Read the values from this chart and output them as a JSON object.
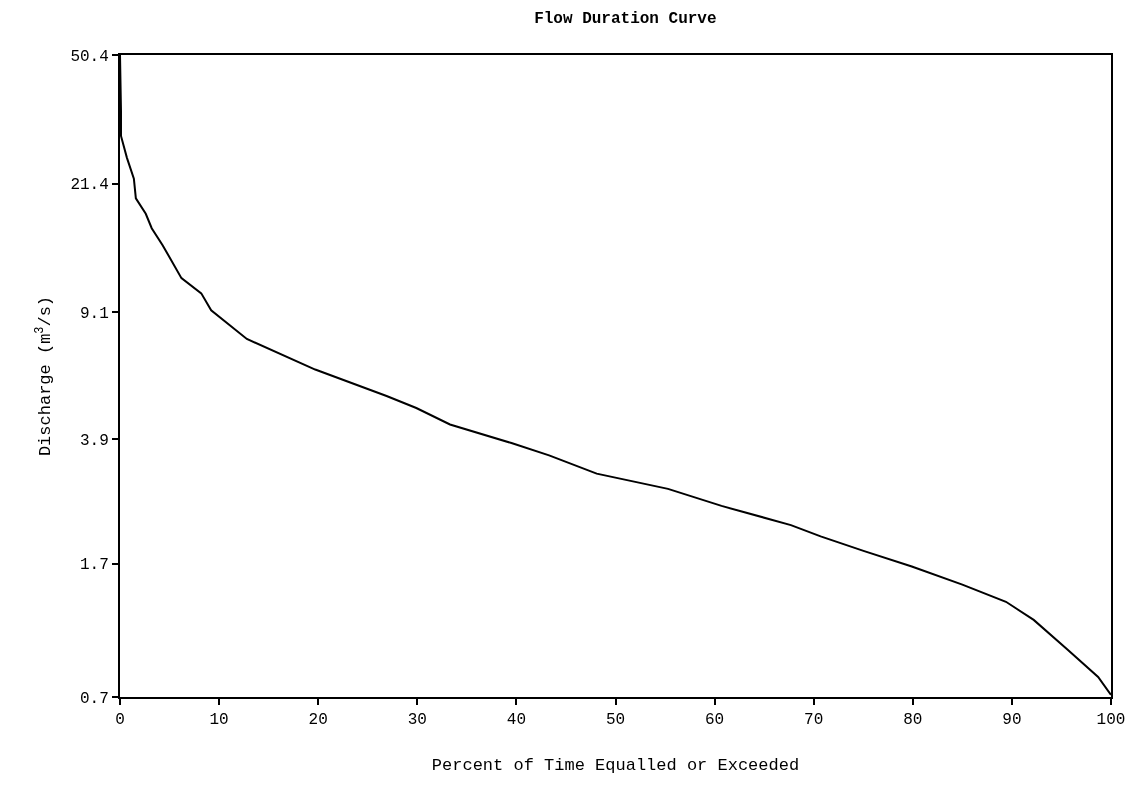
{
  "chart_data": {
    "type": "line",
    "title": "Flow Duration Curve",
    "xlabel": "Percent of Time Equalled or Exceeded",
    "ylabel": "Discharge (m$^{3}$/s)",
    "log": "y",
    "marker": "none",
    "line_style": "solid",
    "x": [
      0,
      0.1,
      0.1,
      0.7,
      1.4,
      1.6,
      2.6,
      3.2,
      4.3,
      6.2,
      8.2,
      9.2,
      12.8,
      19.7,
      26.9,
      29.9,
      33.3,
      39.5,
      43.3,
      48.1,
      55.3,
      60.7,
      67.7,
      70.7,
      75.1,
      79.9,
      85.0,
      89.4,
      92.2,
      95.6,
      98.7,
      100
    ],
    "series": [
      {
        "color": "#000000",
        "values": [
          50.4,
          34.7,
          29.4,
          25.4,
          22.1,
          19.4,
          17.5,
          15.9,
          14.2,
          11.4,
          10.3,
          9.2,
          7.6,
          6.2,
          5.2,
          4.8,
          4.3,
          3.8,
          3.5,
          3.1,
          2.8,
          2.5,
          2.2,
          2.04,
          1.85,
          1.67,
          1.48,
          1.32,
          1.17,
          0.96,
          0.8,
          0.71
        ]
      }
    ],
    "xlim": [
      0,
      100
    ],
    "xticks": [
      0,
      10,
      20,
      30,
      40,
      50,
      60,
      70,
      80,
      90,
      100
    ],
    "ylim": [
      0.7,
      50.4
    ],
    "yticks": [
      0.7,
      1.7,
      3.9,
      9.1,
      21.4,
      50.4
    ]
  }
}
